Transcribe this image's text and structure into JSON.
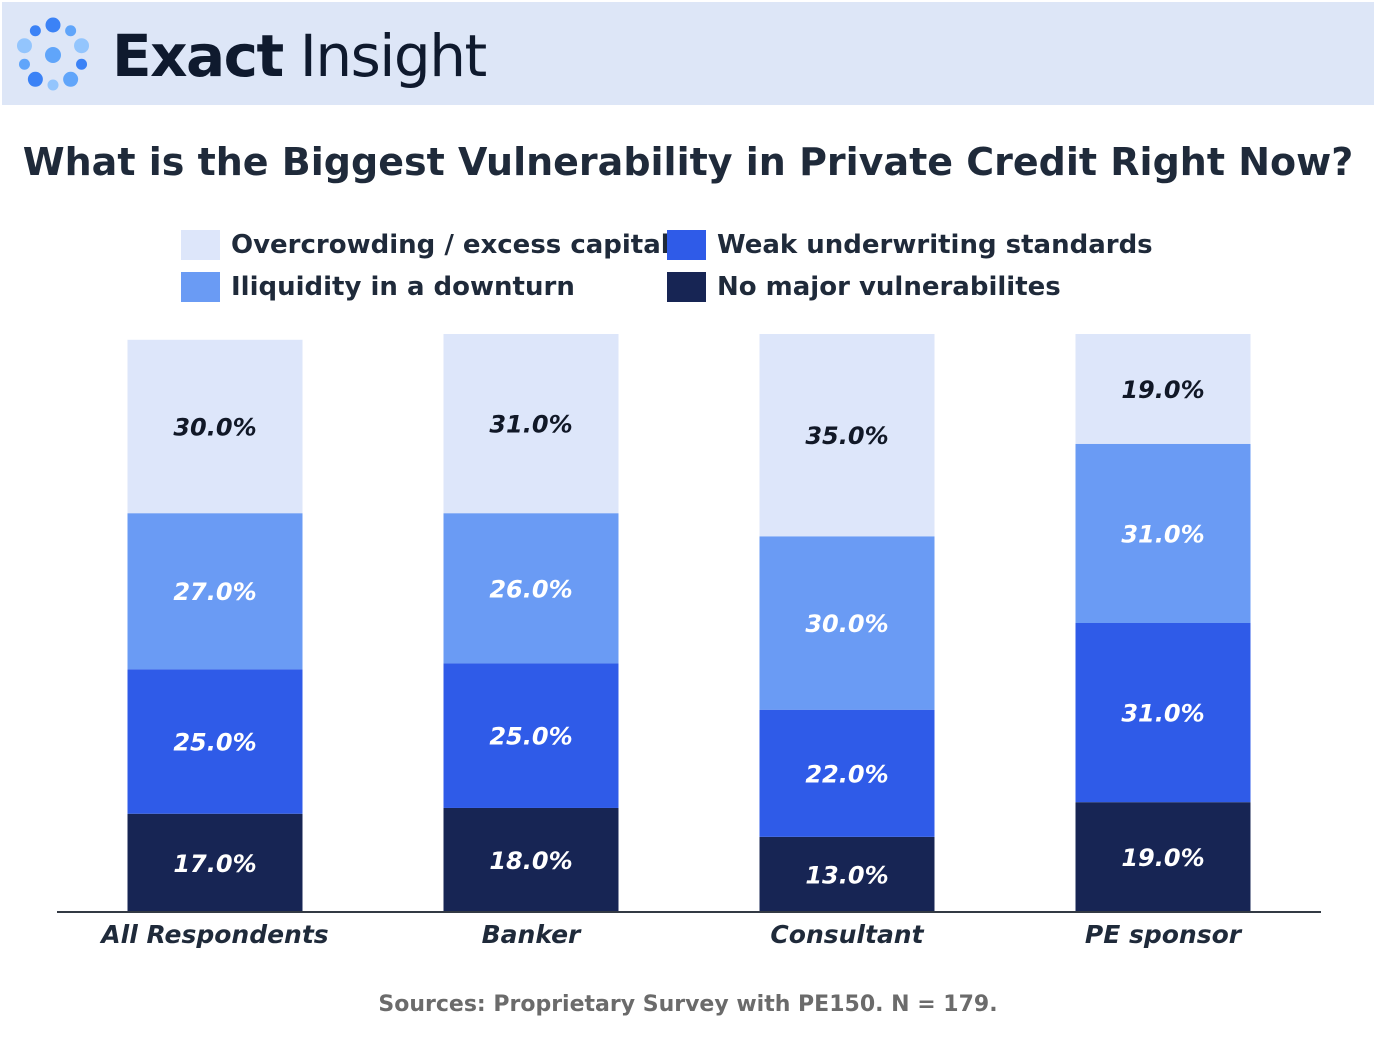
{
  "header": {
    "brand_bold": "Exact",
    "brand_light": " Insight",
    "logo_icon": "exact-insight-dots-logo",
    "logo_colors": [
      "#3b82f6",
      "#60a5fa",
      "#93c5fd"
    ]
  },
  "legend": [
    {
      "label": "Overcrowding / excess capital",
      "color": "#dde6fa"
    },
    {
      "label": "Weak underwriting standards",
      "color": "#2f5be8"
    },
    {
      "label": "Iliquidity in a downturn",
      "color": "#6a9bf4"
    },
    {
      "label": "No major vulnerabilites",
      "color": "#172554"
    }
  ],
  "chart_data": {
    "type": "bar",
    "stacked": true,
    "title": "What is the Biggest Vulnerability in Private Credit Right Now?",
    "categories": [
      "All Respondents",
      "Banker",
      "Consultant",
      "PE sponsor"
    ],
    "series": [
      {
        "name": "No major vulnerabilites",
        "color": "#172554",
        "label_color": "#ffffff",
        "values": [
          17.0,
          18.0,
          13.0,
          19.0
        ],
        "labels": [
          "17.0%",
          "18.0%",
          "13.0%",
          "19.0%"
        ]
      },
      {
        "name": "Weak underwriting standards",
        "color": "#2f5be8",
        "label_color": "#ffffff",
        "values": [
          25.0,
          25.0,
          22.0,
          31.0
        ],
        "labels": [
          "25.0%",
          "25.0%",
          "22.0%",
          "31.0%"
        ]
      },
      {
        "name": "Iliquidity in a downturn",
        "color": "#6a9bf4",
        "label_color": "#ffffff",
        "values": [
          27.0,
          26.0,
          30.0,
          31.0
        ],
        "labels": [
          "27.0%",
          "26.0%",
          "30.0%",
          "31.0%"
        ]
      },
      {
        "name": "Overcrowding / excess capital",
        "color": "#dde6fa",
        "label_color": "#111827",
        "values": [
          30.0,
          31.0,
          35.0,
          19.0
        ],
        "labels": [
          "30.0%",
          "31.0%",
          "35.0%",
          "19.0%"
        ]
      }
    ],
    "ylim": [
      0,
      100
    ],
    "grid": false,
    "legend_position": "top"
  },
  "source": "Sources: Proprietary Survey with PE150. N = 179."
}
